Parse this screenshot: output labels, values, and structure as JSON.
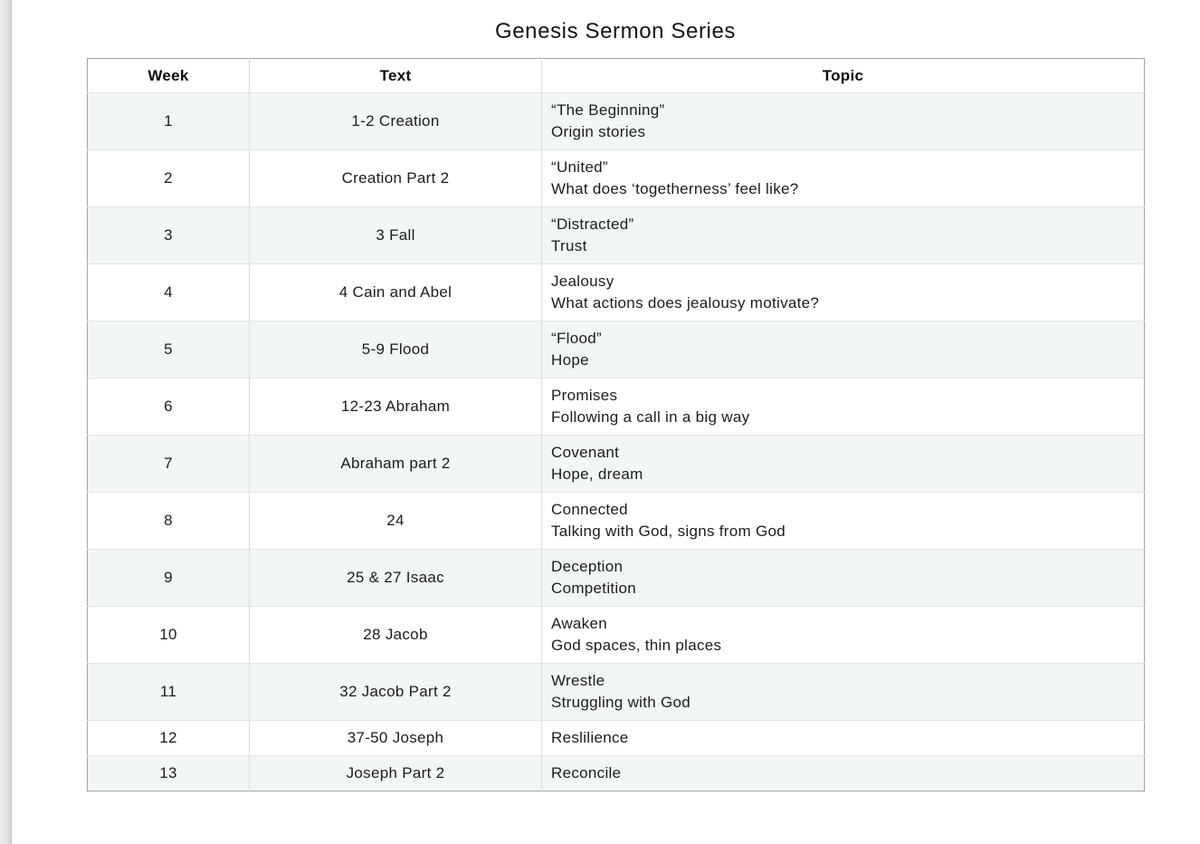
{
  "page": {
    "title": "Genesis Sermon Series"
  },
  "colors": {
    "row_stripe": "#f2f6f6",
    "outer_border": "#a3a3a3",
    "inner_divider": "#dcdcdc",
    "row_divider": "#e4e4e4",
    "text": "#1c1c1c",
    "page_edge": "#d4d2d2"
  },
  "table": {
    "columns": [
      "Week",
      "Text",
      "Topic"
    ],
    "rows": [
      {
        "week": "1",
        "text": "1-2 Creation",
        "topic": [
          "“The Beginning”",
          "Origin stories"
        ]
      },
      {
        "week": "2",
        "text": "Creation Part 2",
        "topic": [
          "“United”",
          "What does ‘togetherness’ feel like?"
        ]
      },
      {
        "week": "3",
        "text": "3 Fall",
        "topic": [
          "“Distracted”",
          "Trust"
        ]
      },
      {
        "week": "4",
        "text": "4 Cain and Abel",
        "topic": [
          "Jealousy",
          "What actions does jealousy motivate?"
        ]
      },
      {
        "week": "5",
        "text": "5-9 Flood",
        "topic": [
          "“Flood”",
          "Hope"
        ]
      },
      {
        "week": "6",
        "text": "12-23 Abraham",
        "topic": [
          "Promises",
          "Following a call in a big way"
        ]
      },
      {
        "week": "7",
        "text": "Abraham part 2",
        "topic": [
          "Covenant",
          "Hope, dream"
        ]
      },
      {
        "week": "8",
        "text": "24",
        "topic": [
          "Connected",
          "Talking with God, signs from God"
        ]
      },
      {
        "week": "9",
        "text": "25 & 27 Isaac",
        "topic": [
          "Deception",
          "Competition"
        ]
      },
      {
        "week": "10",
        "text": "28 Jacob",
        "topic": [
          "Awaken",
          "God spaces, thin places"
        ]
      },
      {
        "week": "11",
        "text": "32 Jacob Part 2",
        "topic": [
          "Wrestle",
          "Struggling with God"
        ]
      },
      {
        "week": "12",
        "text": "37-50 Joseph",
        "topic": [
          "Reslilience"
        ]
      },
      {
        "week": "13",
        "text": "Joseph Part 2",
        "topic": [
          "Reconcile"
        ]
      }
    ]
  }
}
